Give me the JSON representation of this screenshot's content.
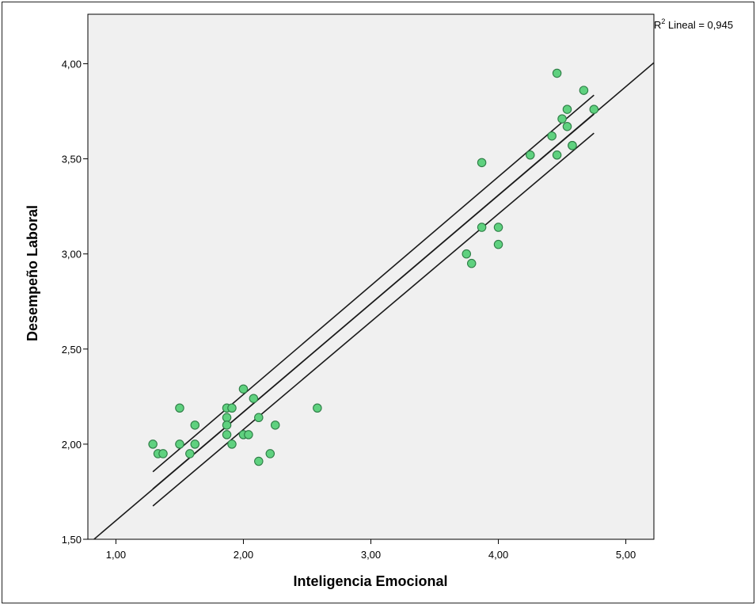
{
  "chart_data": {
    "type": "scatter",
    "title": "",
    "xlabel": "Inteligencia Emocional",
    "ylabel": "Desempeño Laboral",
    "xlim": [
      0.78,
      5.22
    ],
    "ylim": [
      1.5,
      4.26
    ],
    "x_ticks": [
      1,
      2,
      3,
      4,
      5
    ],
    "y_ticks": [
      1.5,
      2.0,
      2.5,
      3.0,
      3.5,
      4.0
    ],
    "x_tick_labels": [
      "1,00",
      "2,00",
      "3,00",
      "4,00",
      "5,00"
    ],
    "y_tick_labels": [
      "1,50",
      "2,00",
      "2,50",
      "3,00",
      "3,50",
      "4,00"
    ],
    "grid": false,
    "annotation": {
      "r2_prefix": "R",
      "r2_sup": "2",
      "r2_text": " Lineal = 0,945"
    },
    "colors": {
      "plot_bg": "#f0f0f0",
      "point_fill": "#5fd17f",
      "point_stroke": "#2e7d46",
      "line": "#1a1a1a"
    },
    "points": [
      [
        1.29,
        2.0
      ],
      [
        1.33,
        1.95
      ],
      [
        1.37,
        1.95
      ],
      [
        1.5,
        2.19
      ],
      [
        1.5,
        2.0
      ],
      [
        1.58,
        1.95
      ],
      [
        1.62,
        2.1
      ],
      [
        1.62,
        2.0
      ],
      [
        1.87,
        2.19
      ],
      [
        1.87,
        2.14
      ],
      [
        1.87,
        2.1
      ],
      [
        1.87,
        2.05
      ],
      [
        1.91,
        2.19
      ],
      [
        1.91,
        2.0
      ],
      [
        2.0,
        2.29
      ],
      [
        2.0,
        2.05
      ],
      [
        2.04,
        2.05
      ],
      [
        2.08,
        2.24
      ],
      [
        2.12,
        2.14
      ],
      [
        2.12,
        1.91
      ],
      [
        2.21,
        1.95
      ],
      [
        2.25,
        2.1
      ],
      [
        2.58,
        2.19
      ],
      [
        3.75,
        3.0
      ],
      [
        3.79,
        2.95
      ],
      [
        3.87,
        3.48
      ],
      [
        3.87,
        3.14
      ],
      [
        4.0,
        3.14
      ],
      [
        4.0,
        3.05
      ],
      [
        4.25,
        3.52
      ],
      [
        4.42,
        3.62
      ],
      [
        4.46,
        3.95
      ],
      [
        4.46,
        3.52
      ],
      [
        4.5,
        3.71
      ],
      [
        4.54,
        3.76
      ],
      [
        4.54,
        3.67
      ],
      [
        4.58,
        3.57
      ],
      [
        4.58,
        3.57
      ],
      [
        4.67,
        3.86
      ],
      [
        4.75,
        3.76
      ]
    ],
    "fit_line": {
      "x0": 0.8,
      "y0": 1.484,
      "x1": 5.22,
      "y1": 4.005
    },
    "ci_upper": {
      "x0": 1.29,
      "y0": 1.855,
      "x1": 4.75,
      "y1": 3.835
    },
    "ci_mid": {
      "x0": 1.29,
      "y0": 1.765,
      "x1": 4.75,
      "y1": 3.735
    },
    "ci_lower": {
      "x0": 1.29,
      "y0": 1.675,
      "x1": 4.75,
      "y1": 3.635
    }
  }
}
